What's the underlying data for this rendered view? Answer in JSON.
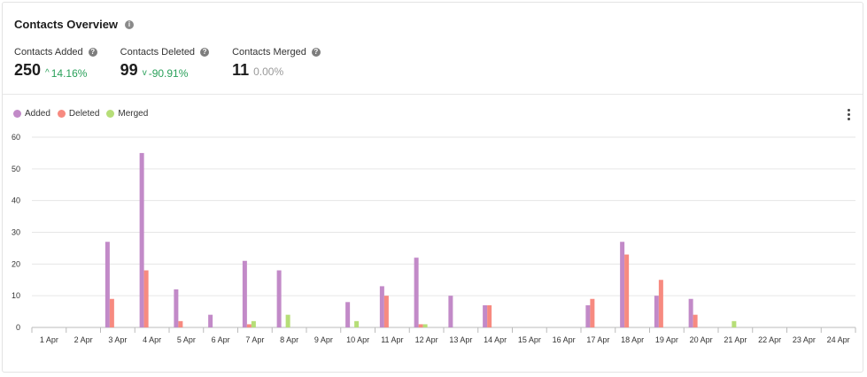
{
  "header": {
    "title": "Contacts Overview",
    "info_icon": "info-icon"
  },
  "metrics": [
    {
      "label": "Contacts Added",
      "value": "250",
      "change": "14.16%",
      "trend": "up"
    },
    {
      "label": "Contacts Deleted",
      "value": "99",
      "change": "-90.91%",
      "trend": "down"
    },
    {
      "label": "Contacts Merged",
      "value": "11",
      "change": "0.00%",
      "trend": "neutral"
    }
  ],
  "colors": {
    "added": "#c28ac8",
    "deleted": "#f78a80",
    "merged": "#b6de78",
    "grid": "#e6e6e6",
    "positive": "#2aa05a"
  },
  "chart_data": {
    "type": "bar",
    "title": "",
    "xlabel": "",
    "ylabel": "",
    "ylim": [
      0,
      60
    ],
    "yticks": [
      0,
      10,
      20,
      30,
      40,
      50,
      60
    ],
    "grid": true,
    "legend_position": "top-left",
    "categories": [
      "1 Apr",
      "2 Apr",
      "3 Apr",
      "4 Apr",
      "5 Apr",
      "6 Apr",
      "7 Apr",
      "8 Apr",
      "9 Apr",
      "10 Apr",
      "11 Apr",
      "12 Apr",
      "13 Apr",
      "14 Apr",
      "15 Apr",
      "16 Apr",
      "17 Apr",
      "18 Apr",
      "19 Apr",
      "20 Apr",
      "21 Apr",
      "22 Apr",
      "23 Apr",
      "24 Apr"
    ],
    "series": [
      {
        "name": "Added",
        "values": [
          0,
          0,
          27,
          55,
          12,
          4,
          21,
          18,
          0,
          8,
          13,
          22,
          10,
          7,
          0,
          0,
          7,
          27,
          10,
          9,
          0,
          0,
          0,
          0
        ]
      },
      {
        "name": "Deleted",
        "values": [
          0,
          0,
          9,
          18,
          2,
          0,
          1,
          0,
          0,
          0,
          10,
          1,
          0,
          7,
          0,
          0,
          9,
          23,
          15,
          4,
          0,
          0,
          0,
          0
        ]
      },
      {
        "name": "Merged",
        "values": [
          0,
          0,
          0,
          0,
          0,
          0,
          2,
          4,
          0,
          2,
          0,
          1,
          0,
          0,
          0,
          0,
          0,
          0,
          0,
          0,
          2,
          0,
          0,
          0
        ]
      }
    ]
  }
}
